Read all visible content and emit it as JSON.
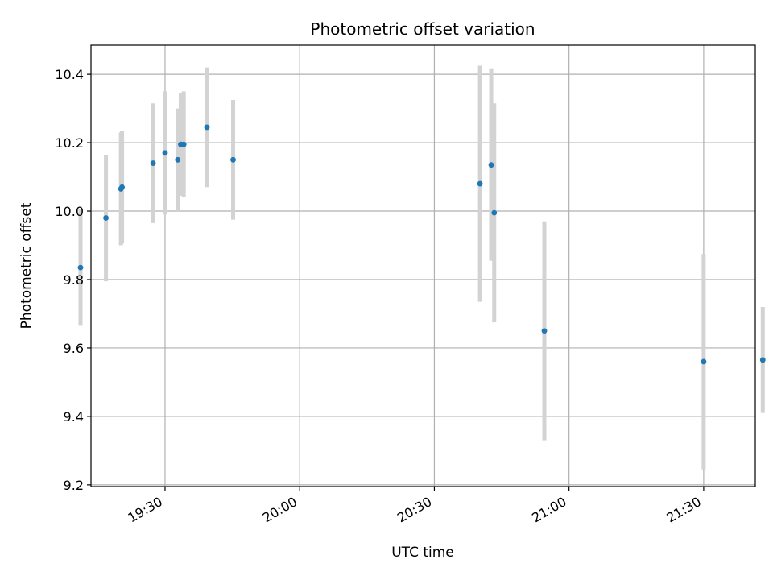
{
  "chart_data": {
    "type": "scatter",
    "title": "Photometric offset variation",
    "xlabel": "UTC time",
    "ylabel": "Photometric offset",
    "xlim": [
      "19:13:30",
      "21:41:30"
    ],
    "ylim": [
      9.195,
      10.485
    ],
    "x_ticks": [
      "19:30",
      "20:00",
      "20:30",
      "21:00",
      "21:30"
    ],
    "y_ticks": [
      "9.2",
      "9.4",
      "9.6",
      "9.8",
      "10.0",
      "10.2",
      "10.4"
    ],
    "grid": true,
    "colors": {
      "point": "#1f77b4",
      "errorbar": "#d3d3d3",
      "grid": "#b0b0b0"
    },
    "points": [
      {
        "x": "19:11:10",
        "y": 9.835,
        "yerr": 0.17
      },
      {
        "x": "19:16:50",
        "y": 9.98,
        "yerr": 0.185
      },
      {
        "x": "19:20:10",
        "y": 10.065,
        "yerr": 0.165
      },
      {
        "x": "19:20:25",
        "y": 10.07,
        "yerr": 0.165
      },
      {
        "x": "19:27:20",
        "y": 10.14,
        "yerr": 0.175
      },
      {
        "x": "19:30:00",
        "y": 10.17,
        "yerr": 0.18
      },
      {
        "x": "19:32:50",
        "y": 10.15,
        "yerr": 0.15
      },
      {
        "x": "19:33:30",
        "y": 10.195,
        "yerr": 0.15
      },
      {
        "x": "19:34:10",
        "y": 10.195,
        "yerr": 0.155
      },
      {
        "x": "19:39:20",
        "y": 10.245,
        "yerr": 0.175
      },
      {
        "x": "19:45:10",
        "y": 10.15,
        "yerr": 0.175
      },
      {
        "x": "20:40:10",
        "y": 10.08,
        "yerr": 0.345
      },
      {
        "x": "20:42:40",
        "y": 10.135,
        "yerr": 0.28
      },
      {
        "x": "20:43:20",
        "y": 9.995,
        "yerr": 0.32
      },
      {
        "x": "20:54:30",
        "y": 9.65,
        "yerr": 0.32
      },
      {
        "x": "21:30:00",
        "y": 9.56,
        "yerr": 0.315
      },
      {
        "x": "21:43:10",
        "y": 9.565,
        "yerr": 0.155
      }
    ]
  }
}
